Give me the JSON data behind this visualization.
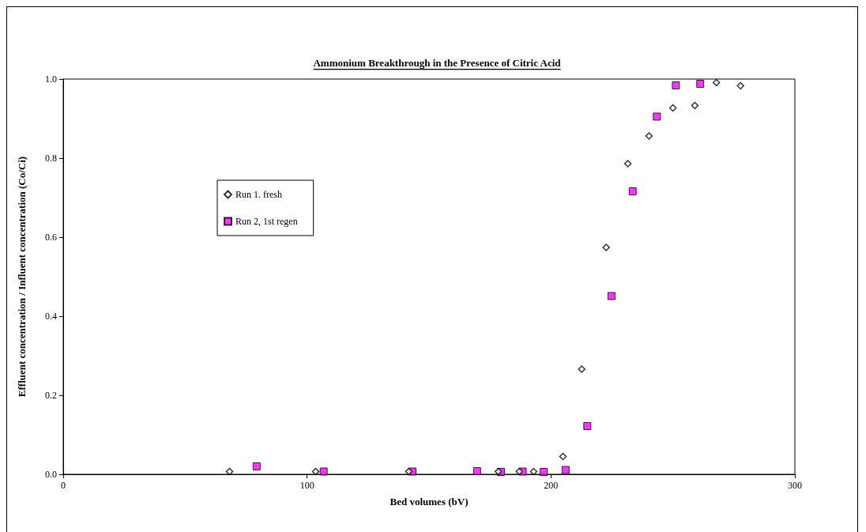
{
  "chart_data": {
    "type": "scatter",
    "title": "Ammonium Breakthrough in the Presence of Citric Acid",
    "xlabel": "Bed volumes (bV)",
    "ylabel": "Effluent concentration / Influent concentration (Co/Ci)",
    "series": [
      {
        "name": "Run 1. fresh",
        "color": "#000000",
        "marker": "diamond",
        "x": [
          68.2,
          103.5,
          141.7,
          178.4,
          187.0,
          192.9,
          204.9,
          212.6,
          222.6,
          231.5,
          240.2,
          250.0,
          259.0,
          267.8,
          277.7
        ],
        "values": [
          0.007,
          0.007,
          0.007,
          0.007,
          0.007,
          0.007,
          0.045,
          0.266,
          0.574,
          0.786,
          0.856,
          0.927,
          0.933,
          0.991,
          0.983
        ]
      },
      {
        "name": "Run 2, 1st regen",
        "color": "#ff00ff",
        "marker": "square",
        "x": [
          79.3,
          106.8,
          143.2,
          169.7,
          179.5,
          188.4,
          197.0,
          206.0,
          214.9,
          224.8,
          233.5,
          243.4,
          251.2,
          261.2
        ],
        "values": [
          0.02,
          0.007,
          0.007,
          0.008,
          0.006,
          0.007,
          0.006,
          0.011,
          0.122,
          0.451,
          0.716,
          0.905,
          0.984,
          0.988
        ]
      }
    ],
    "xlim": [
      0,
      300
    ],
    "xticks": [
      0,
      100,
      200,
      300
    ],
    "ylim": [
      0,
      1
    ],
    "yticks": [
      {
        "value": 0,
        "label": "0.0"
      },
      {
        "value": 0.2,
        "label": "0.2"
      },
      {
        "value": 0.4,
        "label": "0.4"
      },
      {
        "value": 0.6,
        "label": "0.6"
      },
      {
        "value": 0.8,
        "label": "0.8"
      },
      {
        "value": 1,
        "label": "1.0"
      }
    ],
    "grid": false,
    "legend": "top left"
  }
}
